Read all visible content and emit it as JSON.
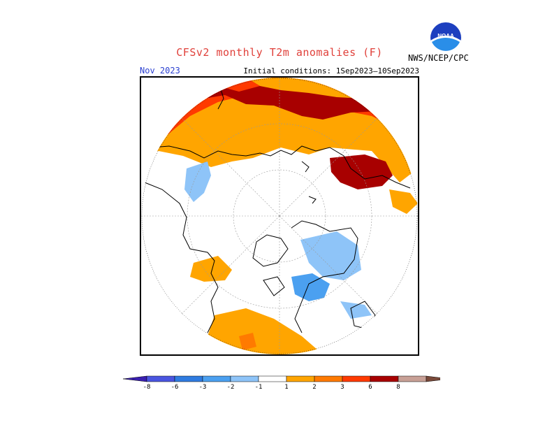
{
  "header": {
    "title": "CFSv2 monthly T2m anomalies (F)",
    "month": "Nov 2023",
    "initial_conditions": "Initial conditions: 1Sep2023–10Sep2023",
    "agency": "NWS/NCEP/CPC",
    "logo_text": "NOAA"
  },
  "colors": {
    "title": "#e0403a",
    "month": "#2a3fd0"
  },
  "legend": {
    "bins": [
      {
        "color": "#3a1fb0"
      },
      {
        "color": "#4a55e0"
      },
      {
        "color": "#2f7be0"
      },
      {
        "color": "#4ba0f0"
      },
      {
        "color": "#8ec4f8"
      },
      {
        "color": "#ffffff"
      },
      {
        "color": "#ffa500"
      },
      {
        "color": "#ff7a00"
      },
      {
        "color": "#ff3a00"
      },
      {
        "color": "#a80000"
      },
      {
        "color": "#c8a096"
      },
      {
        "color": "#7a4a3a"
      }
    ],
    "ticks": [
      "-8",
      "-6",
      "-3",
      "-2",
      "-1",
      "1",
      "2",
      "3",
      "6",
      "8"
    ]
  }
}
